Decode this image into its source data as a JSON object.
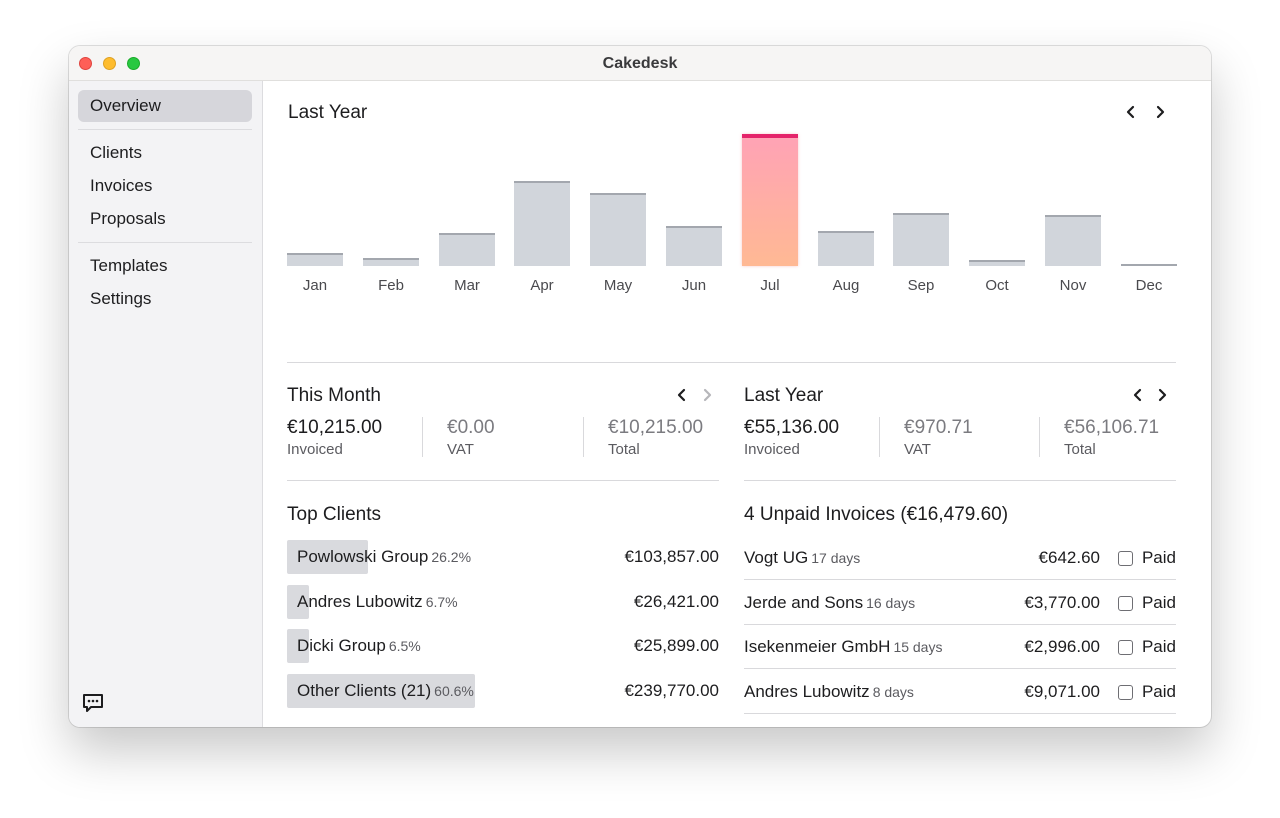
{
  "window": {
    "title": "Cakedesk"
  },
  "sidebar": {
    "items": [
      {
        "label": "Overview",
        "active": true
      },
      {
        "label": "Clients"
      },
      {
        "label": "Invoices"
      },
      {
        "label": "Proposals"
      },
      {
        "label": "Templates"
      },
      {
        "label": "Settings"
      }
    ],
    "footer_icon": "chat-bubble-icon"
  },
  "chart_section": {
    "title": "Last Year",
    "prev_icon": "chevron-left-icon",
    "next_icon": "chevron-right-icon"
  },
  "chart_data": {
    "type": "bar",
    "categories": [
      "Jan",
      "Feb",
      "Mar",
      "Apr",
      "May",
      "Jun",
      "Jul",
      "Aug",
      "Sep",
      "Oct",
      "Nov",
      "Dec"
    ],
    "values": [
      1000,
      600,
      2600,
      6600,
      5700,
      3100,
      10300,
      2700,
      4100,
      500,
      4000,
      100
    ],
    "highlighted_category": "Jul",
    "colors": {
      "bar": "#d1d5db",
      "highlight_top": "#e4236a",
      "highlight_fill_start": "#ffa3b5",
      "highlight_fill_end": "#ffb994"
    },
    "title": "",
    "xlabel": "",
    "ylabel": "",
    "ylim": [
      0,
      10300
    ],
    "grid": false
  },
  "this_month": {
    "title": "This Month",
    "invoiced_value": "€10,215.00",
    "invoiced_label": "Invoiced",
    "vat_value": "€0.00",
    "vat_label": "VAT",
    "total_value": "€10,215.00",
    "total_label": "Total"
  },
  "last_year_stats": {
    "title": "Last Year",
    "invoiced_value": "€55,136.00",
    "invoiced_label": "Invoiced",
    "vat_value": "€970.71",
    "vat_label": "VAT",
    "total_value": "€56,106.71",
    "total_label": "Total"
  },
  "top_clients": {
    "title": "Top Clients",
    "rows": [
      {
        "name": "Powlowski Group",
        "pct": "26.2%",
        "share": 0.262,
        "amount": "€103,857.00"
      },
      {
        "name": "Andres Lubowitz",
        "pct": "6.7%",
        "share": 0.067,
        "amount": "€26,421.00"
      },
      {
        "name": "Dicki Group",
        "pct": "6.5%",
        "share": 0.065,
        "amount": "€25,899.00"
      },
      {
        "name": "Other Clients (21)",
        "pct": "60.6%",
        "share": 0.606,
        "amount": "€239,770.00"
      }
    ]
  },
  "unpaid_invoices": {
    "title": "4 Unpaid Invoices (€16,479.60)",
    "paid_label": "Paid",
    "rows": [
      {
        "client": "Vogt UG",
        "days": "17 days",
        "amount": "€642.60"
      },
      {
        "client": "Jerde and Sons",
        "days": "16 days",
        "amount": "€3,770.00"
      },
      {
        "client": "Isekenmeier GmbH",
        "days": "15 days",
        "amount": "€2,996.00"
      },
      {
        "client": "Andres Lubowitz",
        "days": "8 days",
        "amount": "€9,071.00"
      }
    ]
  }
}
